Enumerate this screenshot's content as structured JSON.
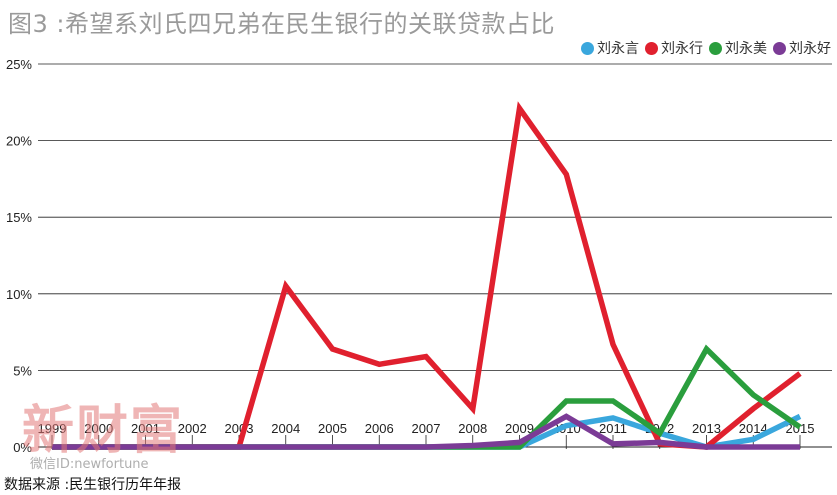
{
  "title": "图3 :希望系刘氏四兄弟在民生银行的关联贷款占比",
  "source": "数据来源 :民生银行历年年报",
  "watermark": "新财富",
  "watermark_id": "微信ID:newfortune",
  "chart_data": {
    "type": "line",
    "title": "图3 :希望系刘氏四兄弟在民生银行的关联贷款占比",
    "xlabel": "",
    "ylabel": "",
    "ylim": [
      0,
      25
    ],
    "yticks": [
      0,
      5,
      10,
      15,
      20,
      25
    ],
    "ytick_labels": [
      "0%",
      "5%",
      "10%",
      "15%",
      "20%",
      "25%"
    ],
    "grid": true,
    "legend_position": "top-right",
    "categories": [
      "1999",
      "2000",
      "2001",
      "2002",
      "2003",
      "2004",
      "2005",
      "2006",
      "2007",
      "2008",
      "2009",
      "2010",
      "2011",
      "2012",
      "2013",
      "2014",
      "2015"
    ],
    "series": [
      {
        "name": "刘永言",
        "color": "#3aa7dd",
        "values": [
          0,
          0,
          0,
          0,
          0,
          0,
          0,
          0,
          0,
          0,
          0,
          1.4,
          1.9,
          0.9,
          0,
          0.5,
          2.0
        ]
      },
      {
        "name": "刘永行",
        "color": "#e0202e",
        "values": [
          0,
          0,
          0,
          0,
          0,
          10.5,
          6.4,
          5.4,
          5.9,
          2.5,
          22.1,
          17.8,
          6.7,
          0.2,
          0,
          2.5,
          4.8
        ]
      },
      {
        "name": "刘永美",
        "color": "#2a9e3d",
        "values": [
          0,
          0,
          0,
          0,
          0,
          0,
          0,
          0,
          0,
          0,
          0,
          3.0,
          3.0,
          0.9,
          6.4,
          3.4,
          1.3
        ]
      },
      {
        "name": "刘永好",
        "color": "#7b3b96",
        "values": [
          0,
          0,
          0,
          0,
          0,
          0,
          0,
          0,
          0,
          0.1,
          0.3,
          2.0,
          0.2,
          0.3,
          0,
          0,
          0
        ]
      }
    ]
  }
}
